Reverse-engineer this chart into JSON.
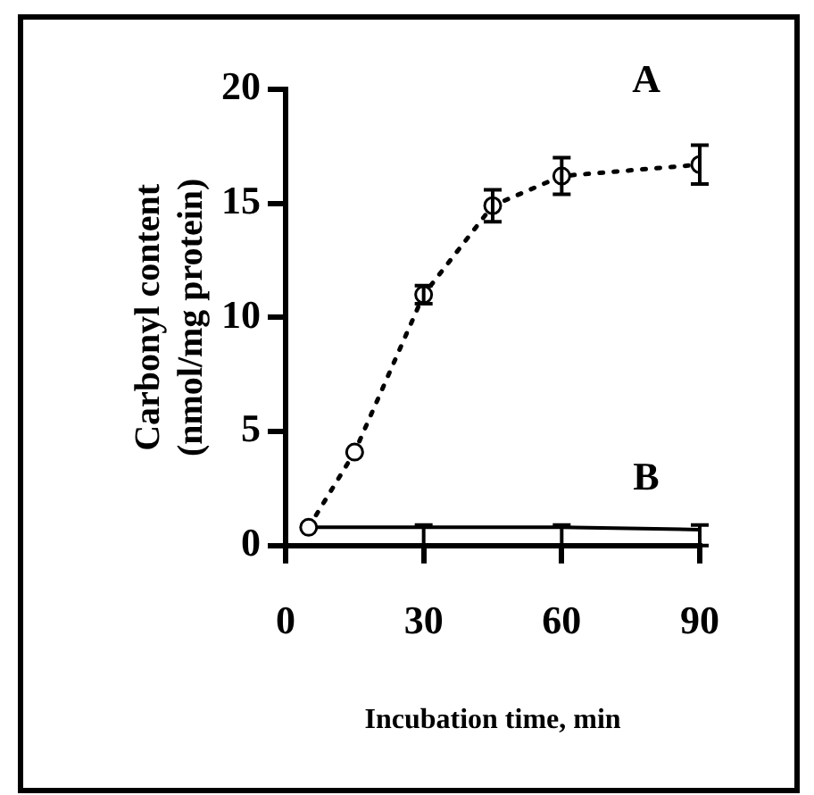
{
  "chart_data": {
    "type": "line",
    "xlabel": "Incubation time, min",
    "ylabel": "Carbonyl content (nmol/mg protein)",
    "xlim": [
      0,
      90
    ],
    "xticks": [
      0,
      30,
      60,
      90
    ],
    "ylim": [
      0,
      20
    ],
    "yticks": [
      0,
      5,
      10,
      15,
      20
    ],
    "grid": false,
    "legend": false,
    "series": [
      {
        "name": "A",
        "color": "#000000",
        "x": [
          5,
          15,
          30,
          45,
          60,
          90
        ],
        "values": [
          0.8,
          4.1,
          11.0,
          14.9,
          16.2,
          16.7
        ],
        "errors": [
          null,
          null,
          0.4,
          0.7,
          0.8,
          0.85
        ],
        "marker": "circle",
        "line_style": "dotted"
      },
      {
        "name": "B",
        "color": "#000000",
        "x": [
          5,
          15,
          30,
          45,
          60,
          90
        ],
        "values": [
          0.8,
          0.8,
          0.8,
          0.8,
          0.8,
          0.7
        ],
        "errors": [
          null,
          null,
          [
            0,
            0.9
          ],
          null,
          [
            0,
            0.9
          ],
          [
            0,
            0.9
          ]
        ],
        "marker": "none",
        "line_style": "solid"
      }
    ]
  }
}
